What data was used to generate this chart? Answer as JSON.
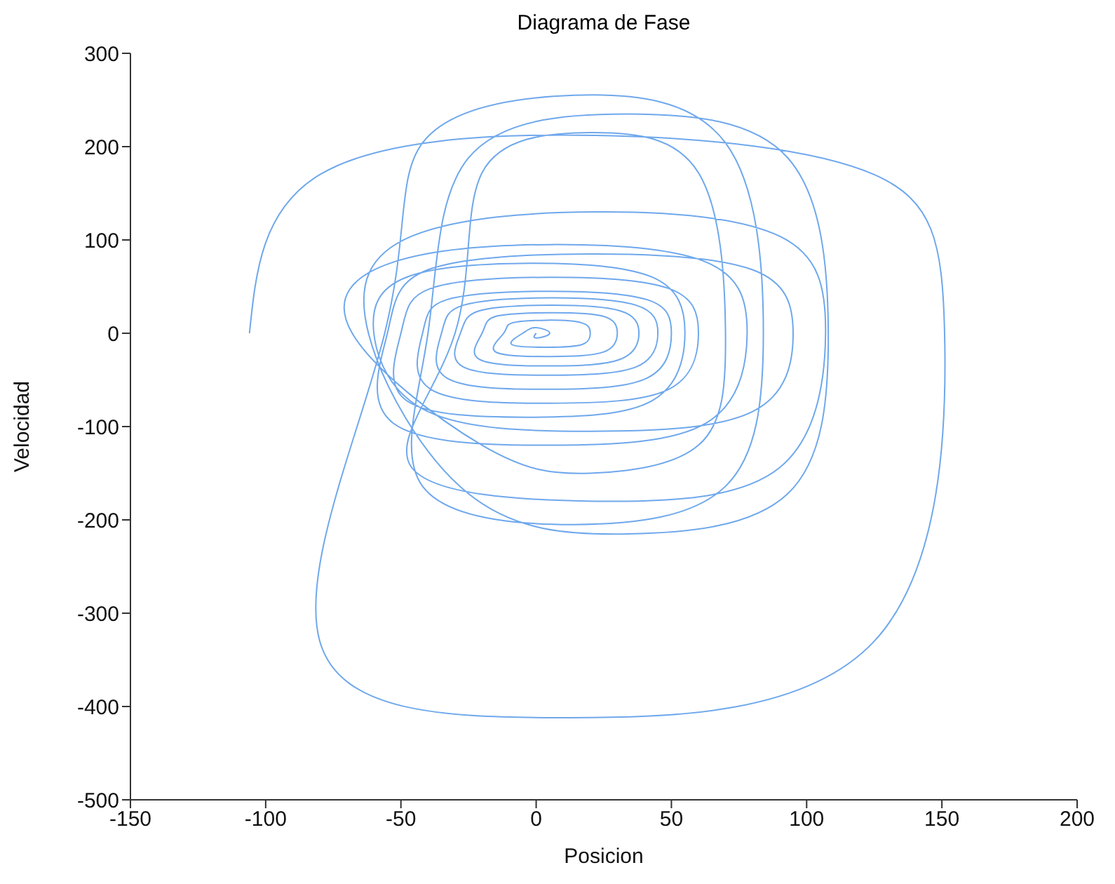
{
  "chart_data": {
    "type": "line",
    "title": "Diagrama de Fase",
    "xlabel": "Posicion",
    "ylabel": "Velocidad",
    "xlim": [
      -150,
      200
    ],
    "xticks": [
      -150,
      -100,
      -50,
      0,
      50,
      100,
      150,
      200
    ],
    "ylim": [
      -500,
      300
    ],
    "yticks": [
      -500,
      -400,
      -300,
      -200,
      -100,
      0,
      100,
      200,
      300
    ],
    "grid": false,
    "legend": false,
    "marker": "none",
    "line_style": "solid",
    "series": [
      {
        "color": "#6fa8ec",
        "x": [
          -106,
          -80,
          22,
          125,
          151,
          125,
          8,
          -80,
          -56,
          -42,
          14,
          70,
          84,
          70,
          14,
          -42,
          -40,
          -25,
          34,
          93,
          108,
          93,
          34,
          -25,
          -62,
          -46,
          22,
          90,
          107,
          90,
          22,
          -46,
          -30,
          -20,
          20,
          60,
          70,
          60,
          20,
          -20,
          -68,
          -53,
          5,
          63,
          78,
          63,
          5,
          -53,
          -55,
          -40,
          20,
          80,
          95,
          80,
          20,
          -40,
          -60,
          -48,
          -2,
          43,
          55,
          43,
          -2,
          -48,
          -50,
          -39,
          5,
          49,
          60,
          49,
          5,
          -39,
          -42,
          -33,
          4,
          41,
          50,
          41,
          4,
          -33,
          -35,
          -27,
          5,
          37,
          45,
          37,
          5,
          -27,
          -28,
          -21,
          5,
          31,
          38,
          31,
          5,
          -21,
          -20,
          -15,
          5,
          25,
          30,
          25,
          5,
          -15,
          -12,
          -9,
          4,
          17,
          20,
          17,
          4,
          -9,
          -5,
          0,
          5,
          0,
          0
        ],
        "values": [
          0,
          170,
          212,
          170,
          0,
          -330,
          -412,
          -330,
          0,
          204,
          255,
          204,
          0,
          -164,
          -205,
          -164,
          0,
          188,
          235,
          188,
          0,
          -172,
          -215,
          -172,
          0,
          104,
          130,
          104,
          0,
          -144,
          -180,
          -144,
          0,
          172,
          215,
          172,
          0,
          -120,
          -150,
          -120,
          0,
          76,
          95,
          76,
          0,
          -96,
          -120,
          -96,
          0,
          68,
          85,
          68,
          0,
          -84,
          -105,
          -84,
          0,
          60,
          75,
          60,
          0,
          -72,
          -90,
          -72,
          0,
          48,
          60,
          48,
          0,
          -60,
          -75,
          -60,
          0,
          36,
          45,
          36,
          0,
          -48,
          -60,
          -48,
          0,
          30,
          38,
          30,
          0,
          -36,
          -45,
          -36,
          0,
          24,
          30,
          24,
          0,
          -28,
          -35,
          -28,
          0,
          18,
          22,
          18,
          0,
          -20,
          -25,
          -20,
          0,
          11,
          14,
          11,
          0,
          -12,
          -15,
          -12,
          0,
          6,
          0,
          -5,
          0
        ]
      }
    ]
  }
}
